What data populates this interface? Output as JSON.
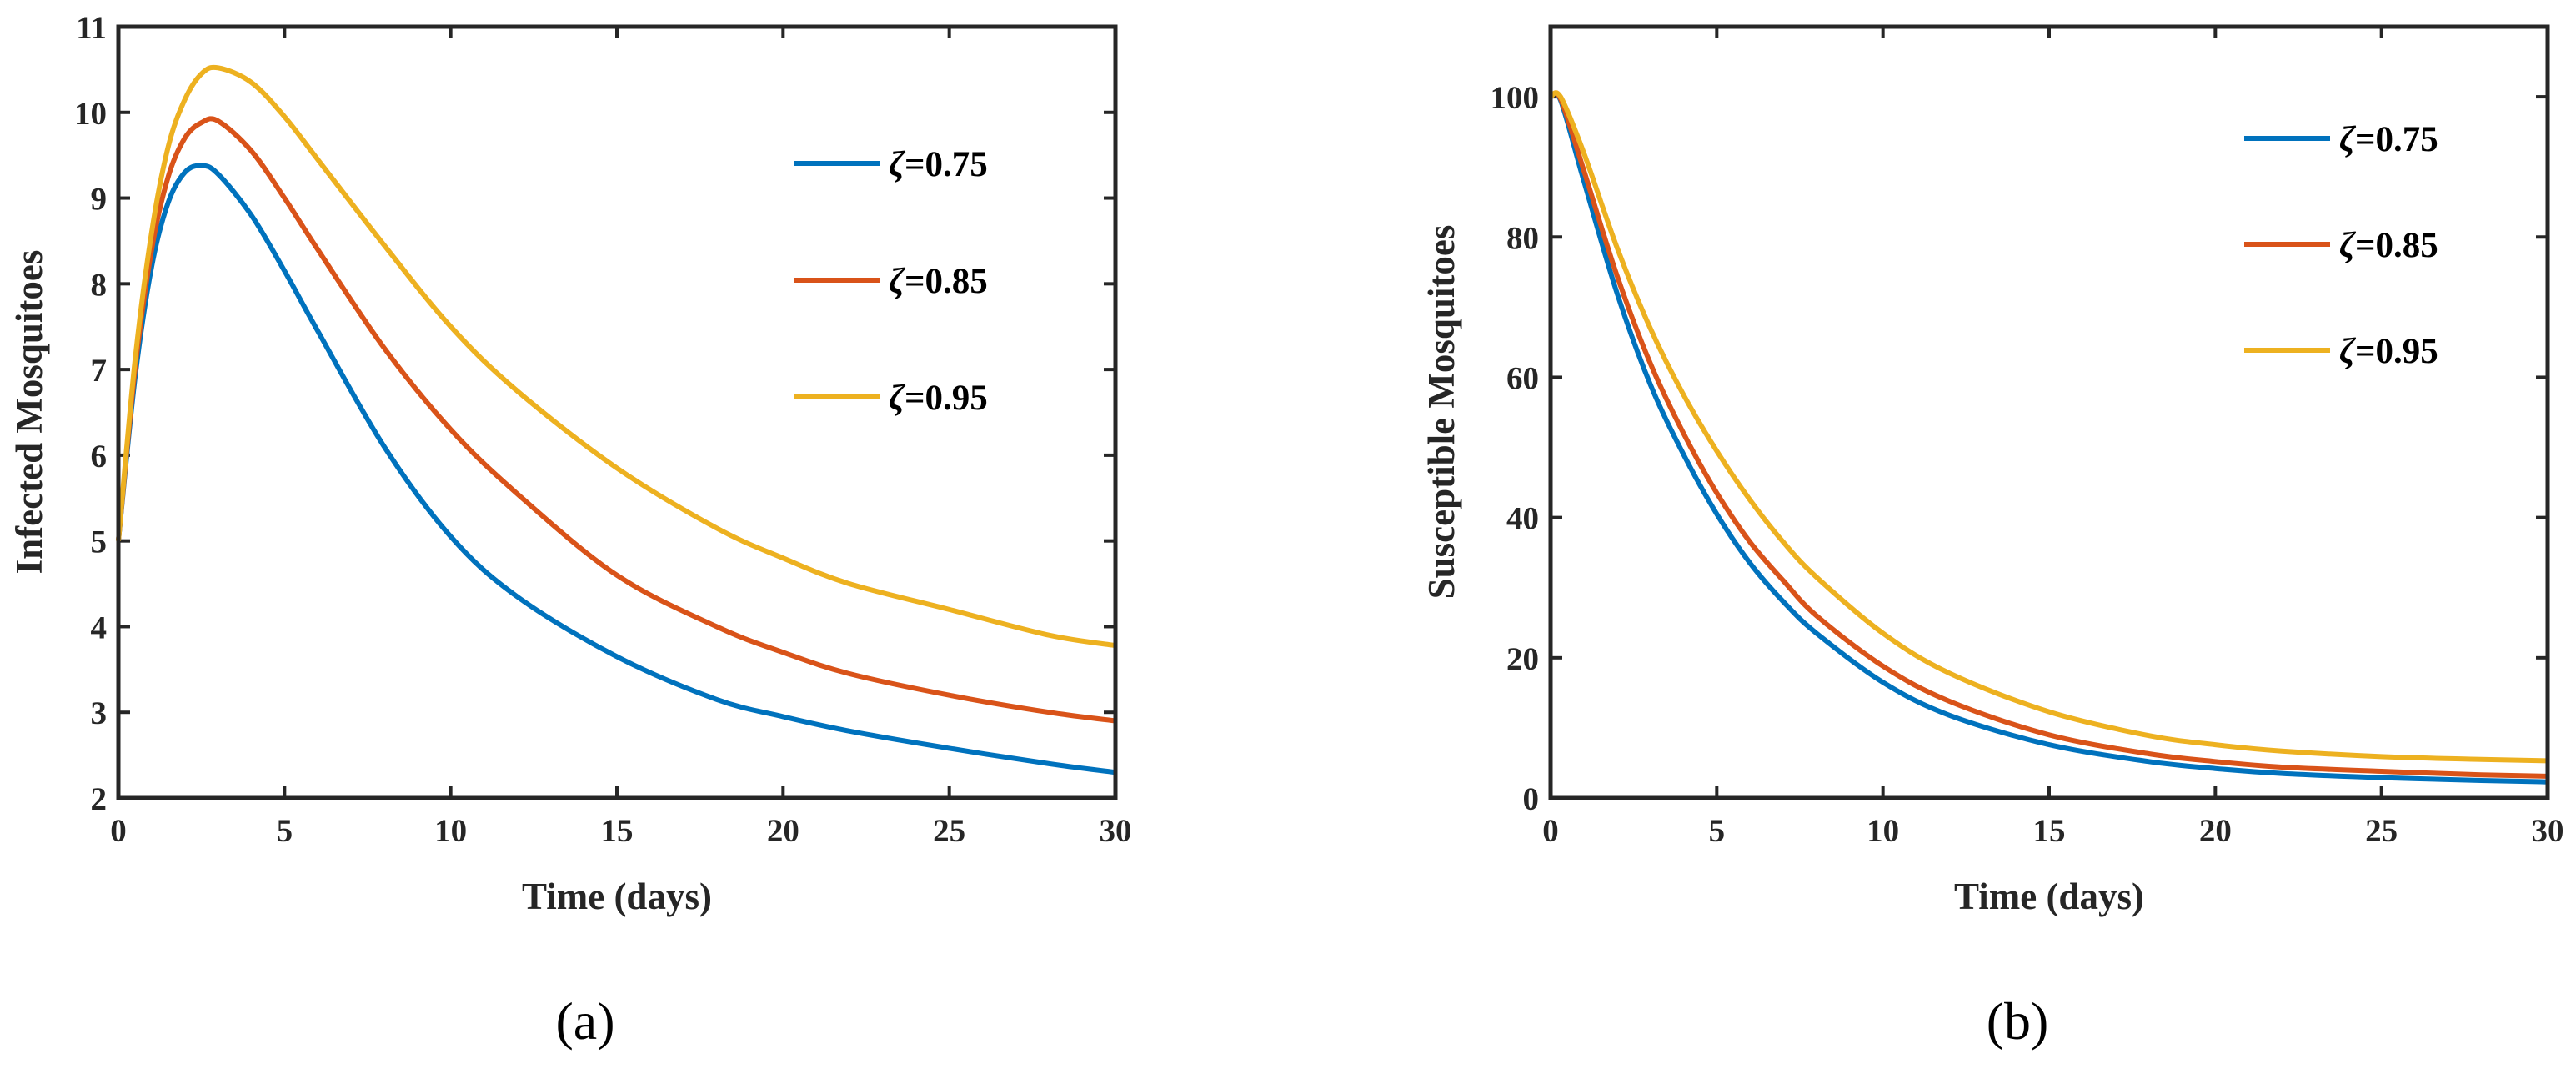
{
  "chart_data": [
    {
      "type": "line",
      "panel_label": "(a)",
      "xlabel": "Time (days)",
      "ylabel": "Infected Mosquitoes",
      "xlim": [
        0,
        30
      ],
      "ylim": [
        2,
        11
      ],
      "xticks": [
        0,
        5,
        10,
        15,
        20,
        25,
        30
      ],
      "yticks": [
        2,
        3,
        4,
        5,
        6,
        7,
        8,
        9,
        10,
        11
      ],
      "legend_position": "top-right",
      "x": [
        0,
        0.5,
        1,
        1.5,
        2,
        2.5,
        3,
        4,
        5,
        6,
        8,
        10,
        12,
        15,
        18,
        20,
        22,
        25,
        28,
        30
      ],
      "series": [
        {
          "name": "ζ=0.75",
          "greek": "ζ",
          "value_text": "=0.75",
          "color": "#0072BD",
          "values": [
            5.0,
            6.9,
            8.2,
            8.95,
            9.3,
            9.38,
            9.28,
            8.8,
            8.15,
            7.45,
            6.1,
            5.05,
            4.35,
            3.65,
            3.15,
            2.95,
            2.78,
            2.58,
            2.4,
            2.3
          ]
        },
        {
          "name": "ζ=0.85",
          "greek": "ζ",
          "value_text": "=0.85",
          "color": "#D95319",
          "values": [
            5.0,
            7.0,
            8.4,
            9.25,
            9.7,
            9.88,
            9.9,
            9.55,
            9.0,
            8.4,
            7.25,
            6.3,
            5.55,
            4.6,
            4.0,
            3.7,
            3.45,
            3.2,
            3.0,
            2.9
          ]
        },
        {
          "name": "ζ=0.95",
          "greek": "ζ",
          "value_text": "=0.95",
          "color": "#EDB120",
          "values": [
            5.0,
            7.1,
            8.6,
            9.6,
            10.15,
            10.45,
            10.52,
            10.35,
            9.95,
            9.45,
            8.45,
            7.5,
            6.75,
            5.85,
            5.15,
            4.8,
            4.5,
            4.2,
            3.9,
            3.78
          ]
        }
      ]
    },
    {
      "type": "line",
      "panel_label": "(b)",
      "xlabel": "Time (days)",
      "ylabel": "Susceptible Mosquitoes",
      "xlim": [
        0,
        30
      ],
      "ylim": [
        0,
        110
      ],
      "xticks": [
        0,
        5,
        10,
        15,
        20,
        25,
        30
      ],
      "yticks": [
        0,
        20,
        40,
        60,
        80,
        100
      ],
      "legend_position": "top-right",
      "x": [
        0,
        0.3,
        1,
        2,
        3,
        4,
        5,
        6,
        7,
        8,
        10,
        12,
        15,
        18,
        20,
        22,
        25,
        28,
        30
      ],
      "series": [
        {
          "name": "ζ=0.75",
          "greek": "ζ",
          "value_text": "=0.75",
          "color": "#0072BD",
          "values": [
            100,
            99.5,
            88,
            72,
            59,
            49,
            40.5,
            33.5,
            28,
            23.5,
            16.5,
            11.8,
            7.6,
            5.2,
            4.2,
            3.5,
            2.9,
            2.5,
            2.3
          ]
        },
        {
          "name": "ζ=0.85",
          "greek": "ζ",
          "value_text": "=0.85",
          "color": "#D95319",
          "values": [
            100,
            99.7,
            89.5,
            74.5,
            62,
            52,
            43.5,
            36.5,
            31,
            26,
            18.8,
            13.8,
            9,
            6.3,
            5.2,
            4.4,
            3.8,
            3.3,
            3.1
          ]
        },
        {
          "name": "ζ=0.95",
          "greek": "ζ",
          "value_text": "=0.95",
          "color": "#EDB120",
          "values": [
            100,
            100,
            92,
            78.5,
            67,
            57.5,
            49.5,
            42.5,
            36.5,
            31.5,
            23.5,
            17.8,
            12.3,
            8.9,
            7.6,
            6.7,
            5.9,
            5.5,
            5.3
          ]
        }
      ]
    }
  ]
}
